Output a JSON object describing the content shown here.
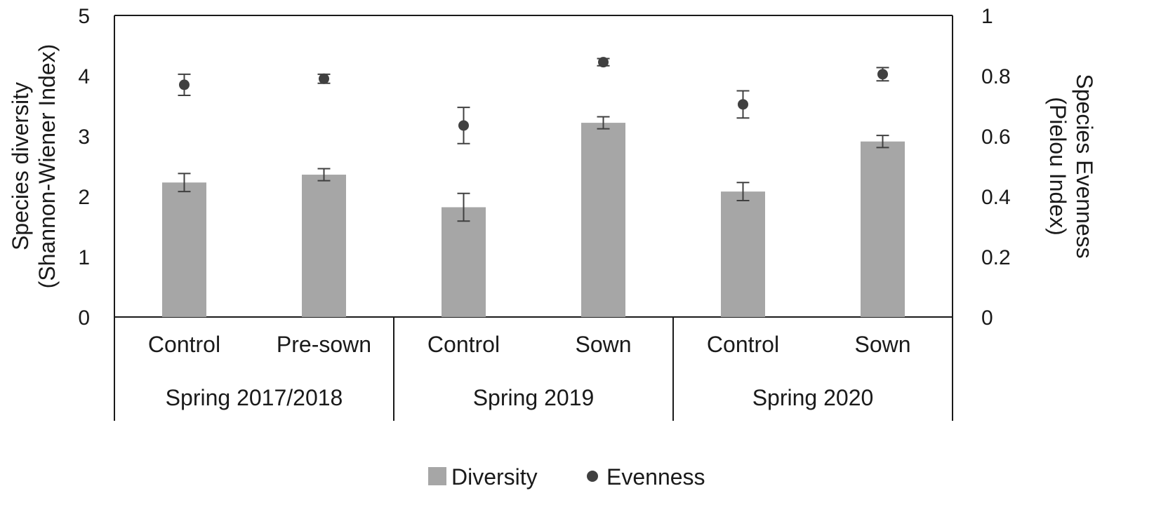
{
  "chart_data": {
    "type": "bar",
    "groups": [
      {
        "label": "Spring 2017/2018",
        "categories": [
          "Control",
          "Pre-sown"
        ]
      },
      {
        "label": "Spring 2019",
        "categories": [
          "Control",
          "Sown"
        ]
      },
      {
        "label": "Spring 2020",
        "categories": [
          "Control",
          "Sown"
        ]
      }
    ],
    "series": [
      {
        "name": "Diversity",
        "kind": "bar",
        "axis": "left",
        "color": "#a6a6a6",
        "values": [
          2.23,
          2.36,
          1.82,
          3.22,
          2.08,
          2.91
        ],
        "errors": [
          0.15,
          0.1,
          0.23,
          0.1,
          0.15,
          0.1
        ]
      },
      {
        "name": "Evenness",
        "kind": "point",
        "axis": "right",
        "color": "#404040",
        "values": [
          0.77,
          0.79,
          0.635,
          0.845,
          0.705,
          0.805
        ],
        "errors": [
          0.035,
          0.015,
          0.06,
          0.012,
          0.045,
          0.022
        ]
      }
    ],
    "y_left": {
      "label_lines": [
        "Species diversity",
        "(Shannon-Wiener Index)"
      ],
      "ylim": [
        0,
        5
      ],
      "ticks": [
        0,
        1,
        2,
        3,
        4,
        5
      ]
    },
    "y_right": {
      "label_lines": [
        "Species Evenness",
        "(Pielou Index)"
      ],
      "ylim": [
        0,
        1
      ],
      "ticks": [
        "0",
        "0.2",
        "0.4",
        "0.6",
        "0.8",
        "1"
      ]
    },
    "legend": {
      "position": "bottom",
      "items": [
        "Diversity",
        "Evenness"
      ]
    },
    "grid": false
  }
}
